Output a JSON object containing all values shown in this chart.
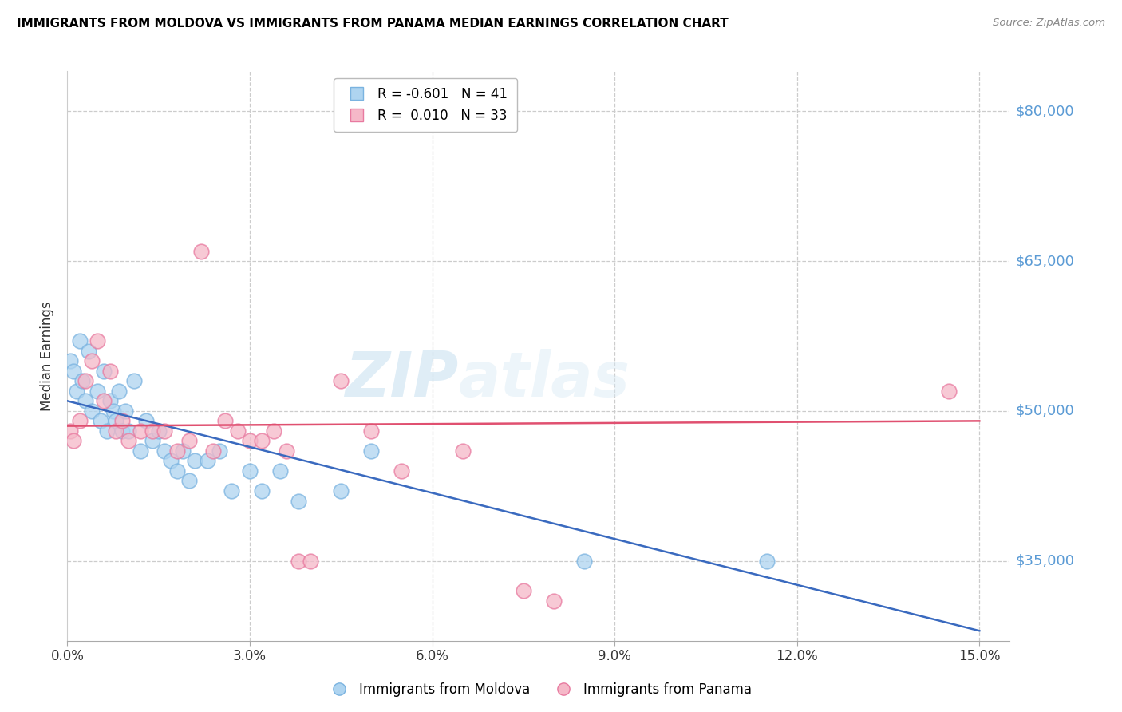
{
  "title": "IMMIGRANTS FROM MOLDOVA VS IMMIGRANTS FROM PANAMA MEDIAN EARNINGS CORRELATION CHART",
  "source": "Source: ZipAtlas.com",
  "ylabel": "Median Earnings",
  "xlabel_ticks": [
    "0.0%",
    "3.0%",
    "6.0%",
    "9.0%",
    "12.0%",
    "15.0%"
  ],
  "xlabel_vals": [
    0.0,
    3.0,
    6.0,
    9.0,
    12.0,
    15.0
  ],
  "ylim": [
    27000,
    84000
  ],
  "xlim": [
    0.0,
    15.5
  ],
  "yticks": [
    35000,
    50000,
    65000,
    80000
  ],
  "ytick_labels": [
    "$35,000",
    "$50,000",
    "$65,000",
    "$80,000"
  ],
  "moldova_color": "#aed4f0",
  "moldova_edge": "#7ab3e0",
  "panama_color": "#f5b8c8",
  "panama_edge": "#e87aa0",
  "blue_line_color": "#3a6abf",
  "pink_line_color": "#e05070",
  "legend_R_moldova": "-0.601",
  "legend_N_moldova": "41",
  "legend_R_panama": "0.010",
  "legend_N_panama": "33",
  "watermark_zip": "ZIP",
  "watermark_atlas": "atlas",
  "moldova_x": [
    0.05,
    0.1,
    0.15,
    0.2,
    0.25,
    0.3,
    0.35,
    0.4,
    0.5,
    0.55,
    0.6,
    0.65,
    0.7,
    0.75,
    0.8,
    0.85,
    0.9,
    0.95,
    1.0,
    1.1,
    1.2,
    1.3,
    1.4,
    1.5,
    1.6,
    1.7,
    1.8,
    1.9,
    2.0,
    2.1,
    2.3,
    2.5,
    2.7,
    3.0,
    3.2,
    3.5,
    3.8,
    4.5,
    5.0,
    8.5,
    11.5
  ],
  "moldova_y": [
    55000,
    54000,
    52000,
    57000,
    53000,
    51000,
    56000,
    50000,
    52000,
    49000,
    54000,
    48000,
    51000,
    50000,
    49000,
    52000,
    48000,
    50000,
    48000,
    53000,
    46000,
    49000,
    47000,
    48000,
    46000,
    45000,
    44000,
    46000,
    43000,
    45000,
    45000,
    46000,
    42000,
    44000,
    42000,
    44000,
    41000,
    42000,
    46000,
    35000,
    35000
  ],
  "panama_x": [
    0.05,
    0.1,
    0.2,
    0.3,
    0.4,
    0.5,
    0.6,
    0.7,
    0.8,
    0.9,
    1.0,
    1.2,
    1.4,
    1.6,
    1.8,
    2.0,
    2.2,
    2.4,
    2.6,
    2.8,
    3.0,
    3.2,
    3.4,
    3.6,
    3.8,
    4.0,
    4.5,
    5.0,
    5.5,
    6.5,
    7.5,
    8.0,
    14.5
  ],
  "panama_y": [
    48000,
    47000,
    49000,
    53000,
    55000,
    57000,
    51000,
    54000,
    48000,
    49000,
    47000,
    48000,
    48000,
    48000,
    46000,
    47000,
    66000,
    46000,
    49000,
    48000,
    47000,
    47000,
    48000,
    46000,
    35000,
    35000,
    53000,
    48000,
    44000,
    46000,
    32000,
    31000,
    52000
  ]
}
